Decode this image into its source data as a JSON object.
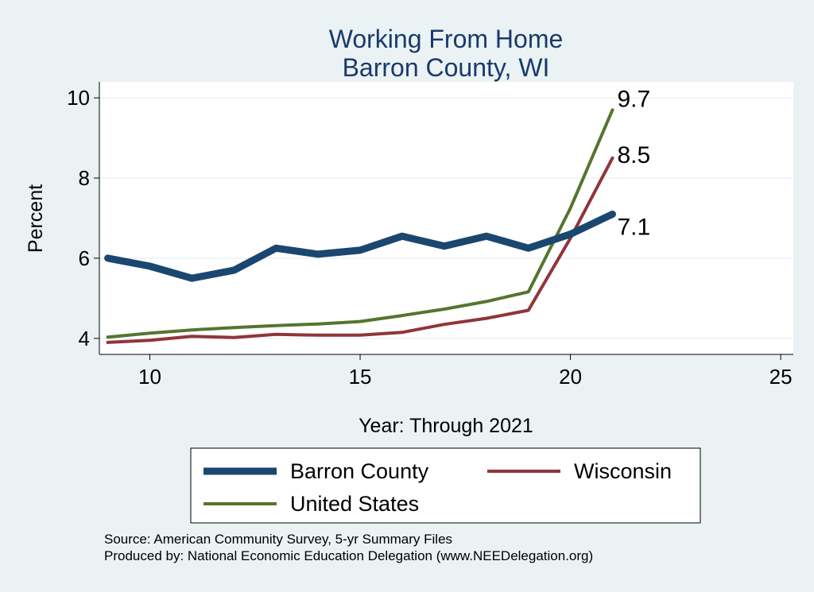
{
  "chart_data": {
    "type": "line",
    "title": "Working From Home",
    "subtitle": "Barron County, WI",
    "xlabel": "Year: Through 2021",
    "ylabel": "Percent",
    "xlim": [
      8.8,
      25.3
    ],
    "ylim": [
      3.6,
      10.4
    ],
    "x_ticks": [
      10,
      15,
      20,
      25
    ],
    "y_ticks": [
      4,
      6,
      8,
      10
    ],
    "x": [
      9,
      10,
      11,
      12,
      13,
      14,
      15,
      16,
      17,
      18,
      19,
      20,
      21
    ],
    "series": [
      {
        "name": "Barron County",
        "color": "#1a476f",
        "values": [
          6.0,
          5.8,
          5.5,
          5.7,
          6.25,
          6.1,
          6.2,
          6.55,
          6.3,
          6.55,
          6.25,
          6.6,
          7.1
        ]
      },
      {
        "name": "Wisconsin",
        "color": "#90353b",
        "values": [
          3.9,
          3.95,
          4.05,
          4.02,
          4.1,
          4.08,
          4.08,
          4.15,
          4.35,
          4.5,
          4.7,
          6.5,
          8.5
        ]
      },
      {
        "name": "United States",
        "color": "#55752f",
        "values": [
          4.03,
          4.13,
          4.21,
          4.27,
          4.32,
          4.36,
          4.42,
          4.57,
          4.73,
          4.92,
          5.16,
          7.25,
          9.7
        ]
      }
    ],
    "annotations": [
      {
        "series": "United States",
        "text": "9.7"
      },
      {
        "series": "Wisconsin",
        "text": "8.5"
      },
      {
        "series": "Barron County",
        "text": "7.1"
      }
    ],
    "legend": {
      "position": "bottom",
      "entries": [
        "Barron County",
        "Wisconsin",
        "United States"
      ]
    }
  },
  "footer": {
    "source": "Source: American Community Survey, 5-yr Summary Files",
    "produced_by": "Produced by: National Economic Education Delegation (www.NEEDelegation.org)"
  }
}
